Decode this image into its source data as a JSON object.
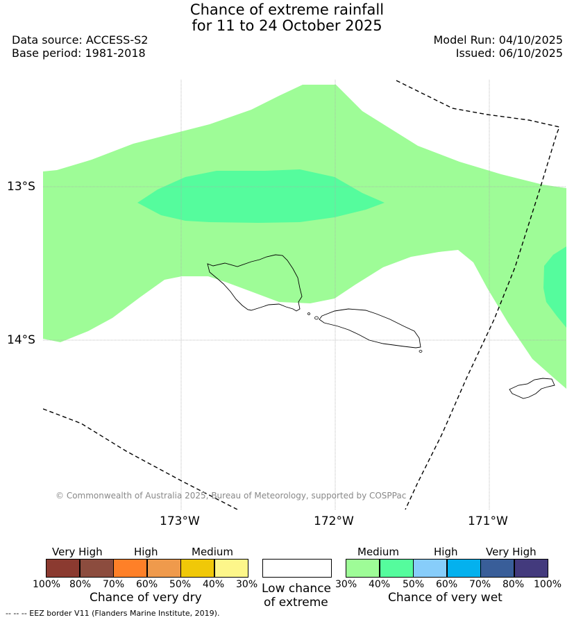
{
  "header": {
    "title_line1": "Chance of extreme rainfall",
    "title_line2": "for 11 to 24 October 2025",
    "data_source": "Data source: ACCESS-S2",
    "base_period": "Base period: 1981-2018",
    "model_run": "Model Run: 04/10/2025",
    "issued": "Issued: 06/10/2025"
  },
  "map": {
    "latitude_labels": [
      "13°S",
      "14°S"
    ],
    "longitude_labels": [
      "173°W",
      "172°W",
      "171°W"
    ],
    "copyright": "© Commonwealth of Australia 2025, Bureau of Meteorology, supported by COSPPac",
    "colors": {
      "medium_wet_30_40": "#9efc97",
      "medium_wet_40_50": "#55fc9d",
      "coastline": "#000000",
      "gridline": "#aaaaaa"
    }
  },
  "legend": {
    "dry": {
      "categories": [
        "Very High",
        "High",
        "Medium"
      ],
      "ticks": [
        "100%",
        "80%",
        "70%",
        "60%",
        "50%",
        "40%",
        "30%"
      ],
      "colors": [
        "#8b3a30",
        "#8c4c3e",
        "#fe8028",
        "#ef9a4c",
        "#f0c808",
        "#fdf68a"
      ],
      "label": "Chance of very dry"
    },
    "neutral": {
      "label_line1": "Low chance",
      "label_line2": "of extreme",
      "color": "#ffffff"
    },
    "wet": {
      "categories": [
        "Medium",
        "High",
        "Very High"
      ],
      "ticks": [
        "30%",
        "40%",
        "50%",
        "60%",
        "70%",
        "80%",
        "100%"
      ],
      "colors": [
        "#9efc97",
        "#55fc9d",
        "#87cdfa",
        "#04b1ee",
        "#395e99",
        "#433a7d"
      ],
      "label": "Chance of very wet"
    },
    "eez_note": "--  --  -- EEZ border V11 (Flanders Marine Institute, 2019)."
  }
}
